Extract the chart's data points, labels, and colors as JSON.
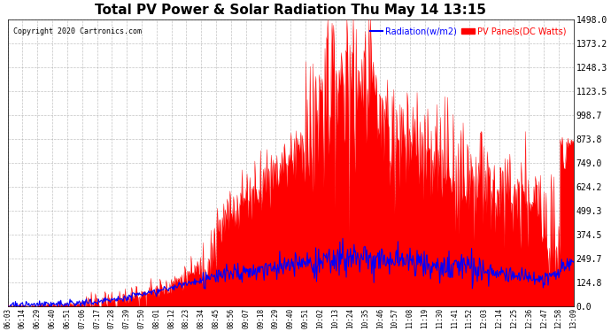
{
  "title": "Total PV Power & Solar Radiation Thu May 14 13:15",
  "copyright": "Copyright 2020 Cartronics.com",
  "legend_radiation": "Radiation(w/m2)",
  "legend_pv": "PV Panels(DC Watts)",
  "ylabel_right_ticks": [
    0.0,
    124.8,
    249.7,
    374.5,
    499.3,
    624.2,
    749.0,
    873.8,
    998.7,
    1123.5,
    1248.3,
    1373.2,
    1498.0
  ],
  "ylim": [
    0,
    1498.0
  ],
  "background_color": "#ffffff",
  "grid_color": "#aaaaaa",
  "pv_color": "#ff0000",
  "radiation_color": "#0000ff",
  "x_labels": [
    "06:03",
    "06:14",
    "06:29",
    "06:40",
    "06:51",
    "07:06",
    "07:17",
    "07:28",
    "07:39",
    "07:50",
    "08:01",
    "08:12",
    "08:23",
    "08:34",
    "08:45",
    "08:56",
    "09:07",
    "09:18",
    "09:29",
    "09:40",
    "09:51",
    "10:02",
    "10:13",
    "10:24",
    "10:35",
    "10:46",
    "10:57",
    "11:08",
    "11:19",
    "11:30",
    "11:41",
    "11:52",
    "12:03",
    "12:14",
    "12:25",
    "12:36",
    "12:47",
    "12:58",
    "13:09"
  ]
}
